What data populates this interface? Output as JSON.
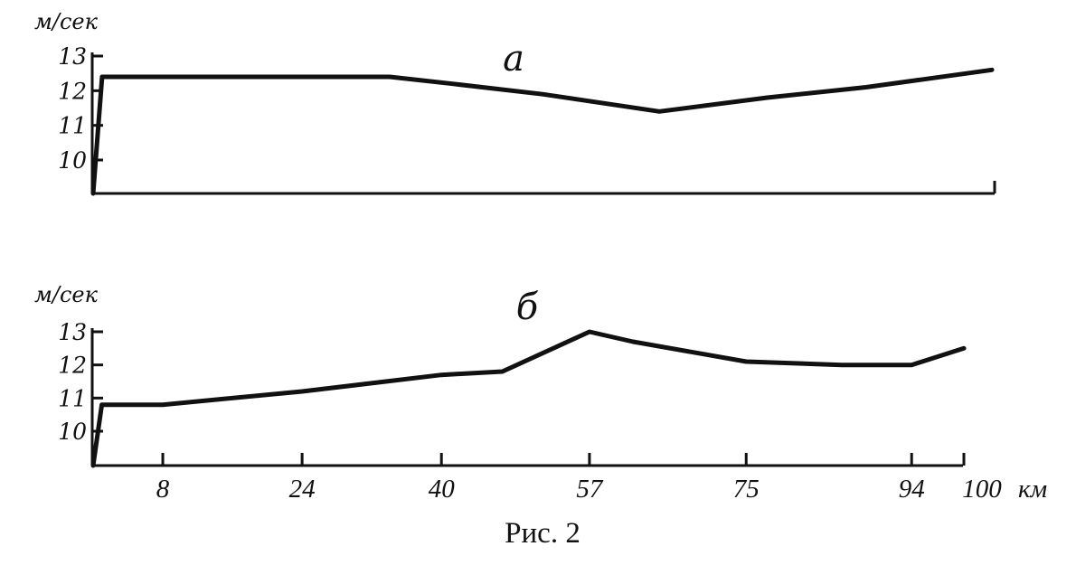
{
  "figure": {
    "caption": "Рис. 2",
    "x_unit": "км"
  },
  "chart_data": [
    {
      "type": "line",
      "panel_label": "а",
      "ylabel": "м/сек",
      "yticks": [
        10,
        11,
        12,
        13
      ],
      "ylim": [
        9.0,
        13.2
      ],
      "xlim": [
        0,
        100
      ],
      "series": [
        {
          "x": [
            0,
            1,
            33,
            40,
            50,
            63,
            75,
            86,
            100
          ],
          "y": [
            9.0,
            12.4,
            12.4,
            12.2,
            11.9,
            11.4,
            11.8,
            12.1,
            12.6
          ]
        }
      ]
    },
    {
      "type": "line",
      "panel_label": "б",
      "ylabel": "м/сек",
      "yticks": [
        10,
        11,
        12,
        13
      ],
      "ylim": [
        9.0,
        13.2
      ],
      "xlim": [
        0,
        100
      ],
      "xticks": [
        8,
        24,
        40,
        57,
        75,
        94,
        100
      ],
      "series": [
        {
          "x": [
            0,
            1,
            8,
            24,
            40,
            47,
            57,
            62,
            75,
            86,
            94,
            100
          ],
          "y": [
            9.0,
            10.8,
            10.8,
            11.2,
            11.7,
            11.8,
            13.0,
            12.7,
            12.1,
            12.0,
            12.0,
            12.5
          ]
        }
      ]
    }
  ]
}
